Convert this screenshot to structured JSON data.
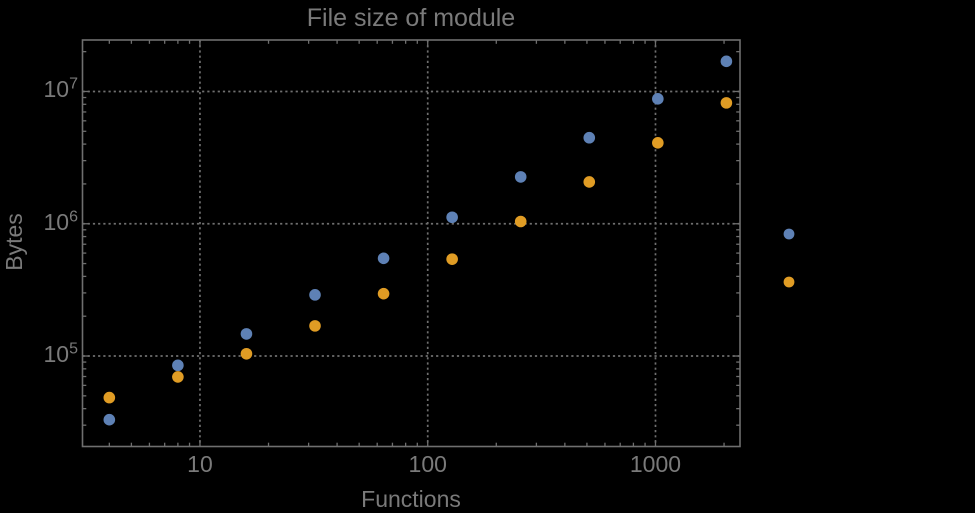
{
  "page": {
    "background": "#000000"
  },
  "chart": {
    "title": "File size of module",
    "x_axis": {
      "label": "Functions",
      "scale": "log",
      "tick_labels": [
        "10",
        "100",
        "1000"
      ]
    },
    "y_axis": {
      "label": "Bytes",
      "scale": "log",
      "tick_labels": [
        "10^5",
        "10^6",
        "10^7"
      ]
    }
  },
  "chart_data": {
    "type": "scatter",
    "title": "File size of module",
    "xlabel": "Functions",
    "ylabel": "Bytes",
    "x_scale": "log",
    "y_scale": "log",
    "xlim": [
      3.05,
      2350
    ],
    "ylim": [
      20700,
      24500000
    ],
    "x_major_ticks": [
      10,
      100,
      1000
    ],
    "x_tick_labels": [
      "10",
      "100",
      "1000"
    ],
    "y_major_ticks": [
      100000,
      1000000,
      10000000
    ],
    "y_tick_exponents": [
      5,
      6,
      7
    ],
    "grid": "dotted lines at each decade, both axes",
    "legend": {
      "labels_visible": false,
      "markers": [
        {
          "name": "series-1",
          "color": "#5e81b5"
        },
        {
          "name": "series-2",
          "color": "#e09c24"
        }
      ]
    },
    "series": [
      {
        "name": "series-1-blue",
        "color": "#5e81b5",
        "x": [
          4,
          8,
          16,
          32,
          64,
          128,
          256,
          512,
          1024,
          2048
        ],
        "y": [
          33000,
          85000,
          147000,
          290000,
          548000,
          1120000,
          2260000,
          4470000,
          8800000,
          16900000
        ]
      },
      {
        "name": "series-2-orange",
        "color": "#e09c24",
        "x": [
          4,
          8,
          16,
          32,
          64,
          128,
          256,
          512,
          1024,
          2048
        ],
        "y": [
          48500,
          69500,
          104000,
          169000,
          296000,
          540000,
          1040000,
          2070000,
          4090000,
          8200000
        ]
      }
    ]
  },
  "colors": {
    "background": "#000000",
    "frame": "#6f6f6f",
    "grid": "#6f6f6f",
    "text": "#7a7a7a",
    "series1": "#5e81b5",
    "series2": "#e09c24"
  }
}
